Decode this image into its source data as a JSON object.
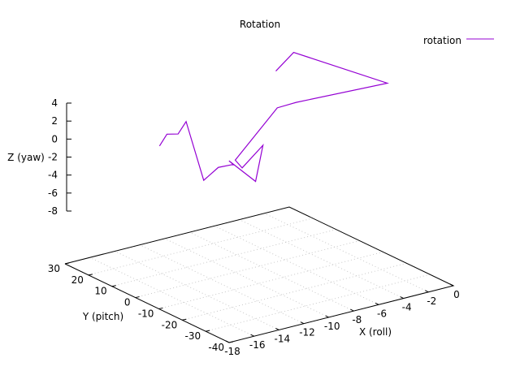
{
  "chart_data": {
    "type": "line",
    "title": "Rotation",
    "xlabel": "X (roll)",
    "ylabel": "Y (pitch)",
    "zlabel": "Z (yaw)",
    "x_ticks": [
      -18,
      -16,
      -14,
      -12,
      -10,
      -8,
      -6,
      -4,
      -2,
      0
    ],
    "y_ticks": [
      -40,
      -30,
      -20,
      -10,
      0,
      10,
      20,
      30
    ],
    "z_ticks": [
      4,
      2,
      0,
      -2,
      -4,
      -6,
      -8
    ],
    "xlim": [
      -18,
      0
    ],
    "ylim": [
      -40,
      30
    ],
    "zlim": [
      -8,
      4
    ],
    "grid": true,
    "legend": "top-right",
    "series": [
      {
        "name": "rotation",
        "color": "#9400d3",
        "points": [
          {
            "x": -10.6,
            "y": 29.0,
            "z": -3.6
          },
          {
            "x": -10.1,
            "y": 28.5,
            "z": -2.4
          },
          {
            "x": -9.3,
            "y": 28.0,
            "z": -2.6
          },
          {
            "x": -8.6,
            "y": 28.3,
            "z": -1.5
          },
          {
            "x": -7.9,
            "y": 24.5,
            "z": -7.8
          },
          {
            "x": -7.2,
            "y": 22.0,
            "z": -6.3
          },
          {
            "x": -6.5,
            "y": 20.0,
            "z": -6.0
          },
          {
            "x": -6.5,
            "y": 19.2,
            "z": -5.9
          },
          {
            "x": -7.0,
            "y": 18.5,
            "z": -5.2
          },
          {
            "x": -5.3,
            "y": 16.2,
            "z": -7.8
          },
          {
            "x": -4.5,
            "y": 17.3,
            "z": -4.2
          },
          {
            "x": -6.0,
            "y": 18.2,
            "z": -6.3
          },
          {
            "x": -6.5,
            "y": 18.5,
            "z": -5.3
          },
          {
            "x": -2.9,
            "y": 19.7,
            "z": -0.9
          },
          {
            "x": -1.7,
            "y": 18.0,
            "z": -0.5
          },
          {
            "x": 4.2,
            "y": 10.5,
            "z": 0.5
          },
          {
            "x": -0.4,
            "y": 26.0,
            "z": 3.6
          },
          {
            "x": -2.3,
            "y": 23.5,
            "z": 2.5
          }
        ]
      }
    ]
  }
}
